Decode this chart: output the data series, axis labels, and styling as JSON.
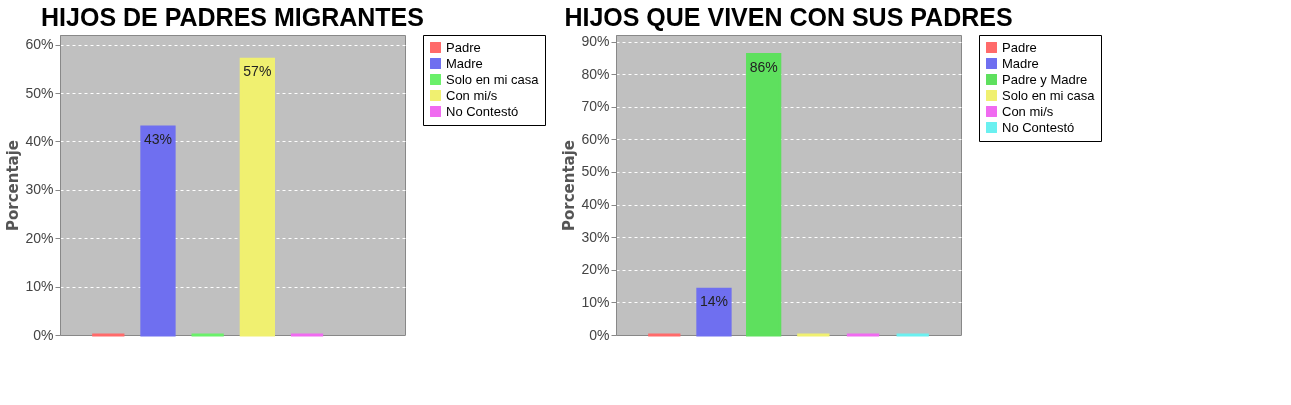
{
  "chart_data": [
    {
      "type": "bar",
      "title": "HIJOS DE PADRES MIGRANTES",
      "ylabel": "Porcentaje",
      "categories": [
        null
      ],
      "series": [
        {
          "name": "Padre",
          "color": "#ff6a6a",
          "values": [
            0
          ]
        },
        {
          "name": "Madre",
          "color": "#6f6ff0",
          "values": [
            43
          ],
          "value_labels": [
            "43%"
          ]
        },
        {
          "name": "Solo en mi casa",
          "color": "#6af06a",
          "values": [
            0
          ]
        },
        {
          "name": "Con mi/s",
          "color": "#f0f070",
          "values": [
            57
          ],
          "value_labels": [
            "57%"
          ]
        },
        {
          "name": "No Contestó",
          "color": "#f06af0",
          "values": [
            0
          ]
        }
      ],
      "ylim": [
        0,
        62
      ],
      "yticks": [
        {
          "value": 0,
          "label": "0%"
        },
        {
          "value": 10,
          "label": "10%"
        },
        {
          "value": 20,
          "label": "20%"
        },
        {
          "value": 30,
          "label": "30%"
        },
        {
          "value": 40,
          "label": "40%"
        },
        {
          "value": 50,
          "label": "50%"
        },
        {
          "value": 60,
          "label": "60%"
        }
      ],
      "grid": "y",
      "legend": "right",
      "tick_labels": "y"
    },
    {
      "type": "bar",
      "title": "HIJOS QUE VIVEN CON SUS PADRES",
      "ylabel": "Porcentaje",
      "categories": [
        null
      ],
      "series": [
        {
          "name": "Padre",
          "color": "#ff6a6a",
          "values": [
            0
          ]
        },
        {
          "name": "Madre",
          "color": "#6f6ff0",
          "values": [
            14
          ],
          "value_labels": [
            "14%"
          ]
        },
        {
          "name": "Padre y Madre",
          "color": "#5ee05e",
          "values": [
            86
          ],
          "value_labels": [
            "86%"
          ]
        },
        {
          "name": "Solo en mi casa",
          "color": "#f0f070",
          "values": [
            0
          ]
        },
        {
          "name": "Con mi/s",
          "color": "#f06af0",
          "values": [
            0
          ]
        },
        {
          "name": "No Contestó",
          "color": "#6af0f0",
          "values": [
            0
          ]
        }
      ],
      "ylim": [
        0,
        92
      ],
      "yticks": [
        {
          "value": 0,
          "label": "0%"
        },
        {
          "value": 10,
          "label": "10%"
        },
        {
          "value": 20,
          "label": "20%"
        },
        {
          "value": 30,
          "label": "30%"
        },
        {
          "value": 40,
          "label": "40%"
        },
        {
          "value": 50,
          "label": "50%"
        },
        {
          "value": 60,
          "label": "60%"
        },
        {
          "value": 70,
          "label": "70%"
        },
        {
          "value": 80,
          "label": "80%"
        },
        {
          "value": 90,
          "label": "90%"
        }
      ],
      "grid": "y",
      "legend": "right",
      "tick_labels": "y"
    }
  ]
}
